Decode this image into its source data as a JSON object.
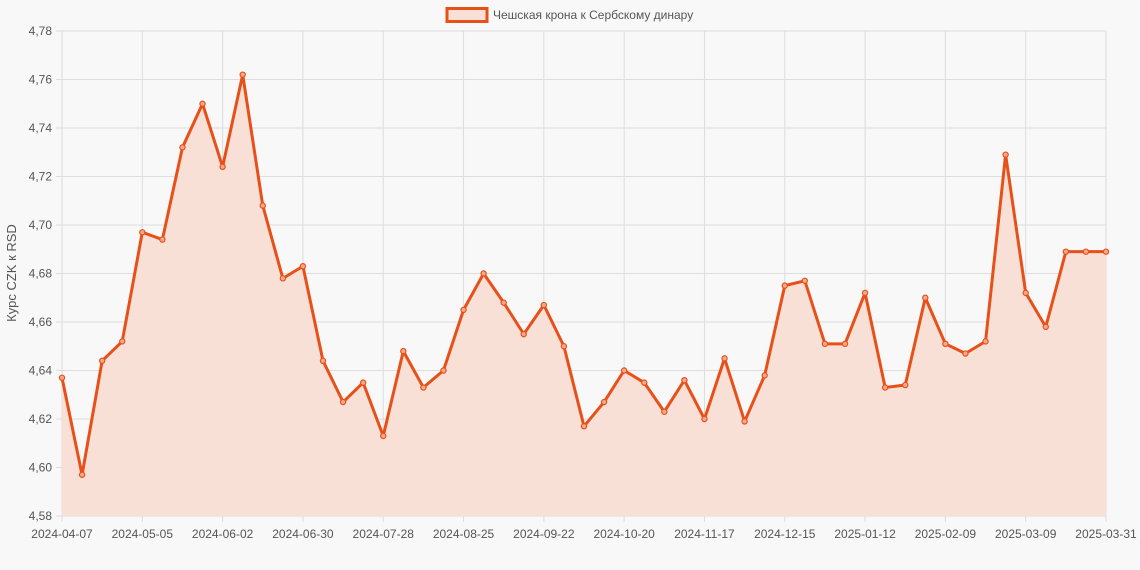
{
  "chart_data": {
    "type": "area",
    "title": "",
    "xlabel": "",
    "ylabel": "Курс CZK к RSD",
    "legend": {
      "position": "top",
      "label": "Чешская крона к Сербскому динару"
    },
    "grid": true,
    "ylim": [
      4.58,
      4.78
    ],
    "yticks": [
      "4,58",
      "4,60",
      "4,62",
      "4,64",
      "4,66",
      "4,68",
      "4,70",
      "4,72",
      "4,74",
      "4,76",
      "4,78"
    ],
    "xticks": [
      "2024-04-07",
      "2024-05-05",
      "2024-06-02",
      "2024-06-30",
      "2024-07-28",
      "2024-08-25",
      "2024-09-22",
      "2024-10-20",
      "2024-11-17",
      "2024-12-15",
      "2025-01-12",
      "2025-02-09",
      "2025-03-09",
      "2025-03-31"
    ],
    "colors": {
      "line": "#e8501a",
      "fill": "#f8e0d6",
      "grid": "#dddddd",
      "background": "#f8f8f8"
    },
    "series": [
      {
        "name": "Чешская крона к Сербскому динару",
        "values": [
          4.637,
          4.597,
          4.644,
          4.652,
          4.697,
          4.694,
          4.732,
          4.75,
          4.724,
          4.762,
          4.708,
          4.678,
          4.683,
          4.644,
          4.627,
          4.635,
          4.613,
          4.648,
          4.633,
          4.64,
          4.665,
          4.68,
          4.668,
          4.655,
          4.667,
          4.65,
          4.617,
          4.627,
          4.64,
          4.635,
          4.623,
          4.636,
          4.62,
          4.645,
          4.619,
          4.638,
          4.675,
          4.677,
          4.651,
          4.651,
          4.672,
          4.633,
          4.634,
          4.67,
          4.651,
          4.647,
          4.652,
          4.729,
          4.672,
          4.658,
          4.689,
          4.689,
          4.689
        ]
      }
    ]
  }
}
